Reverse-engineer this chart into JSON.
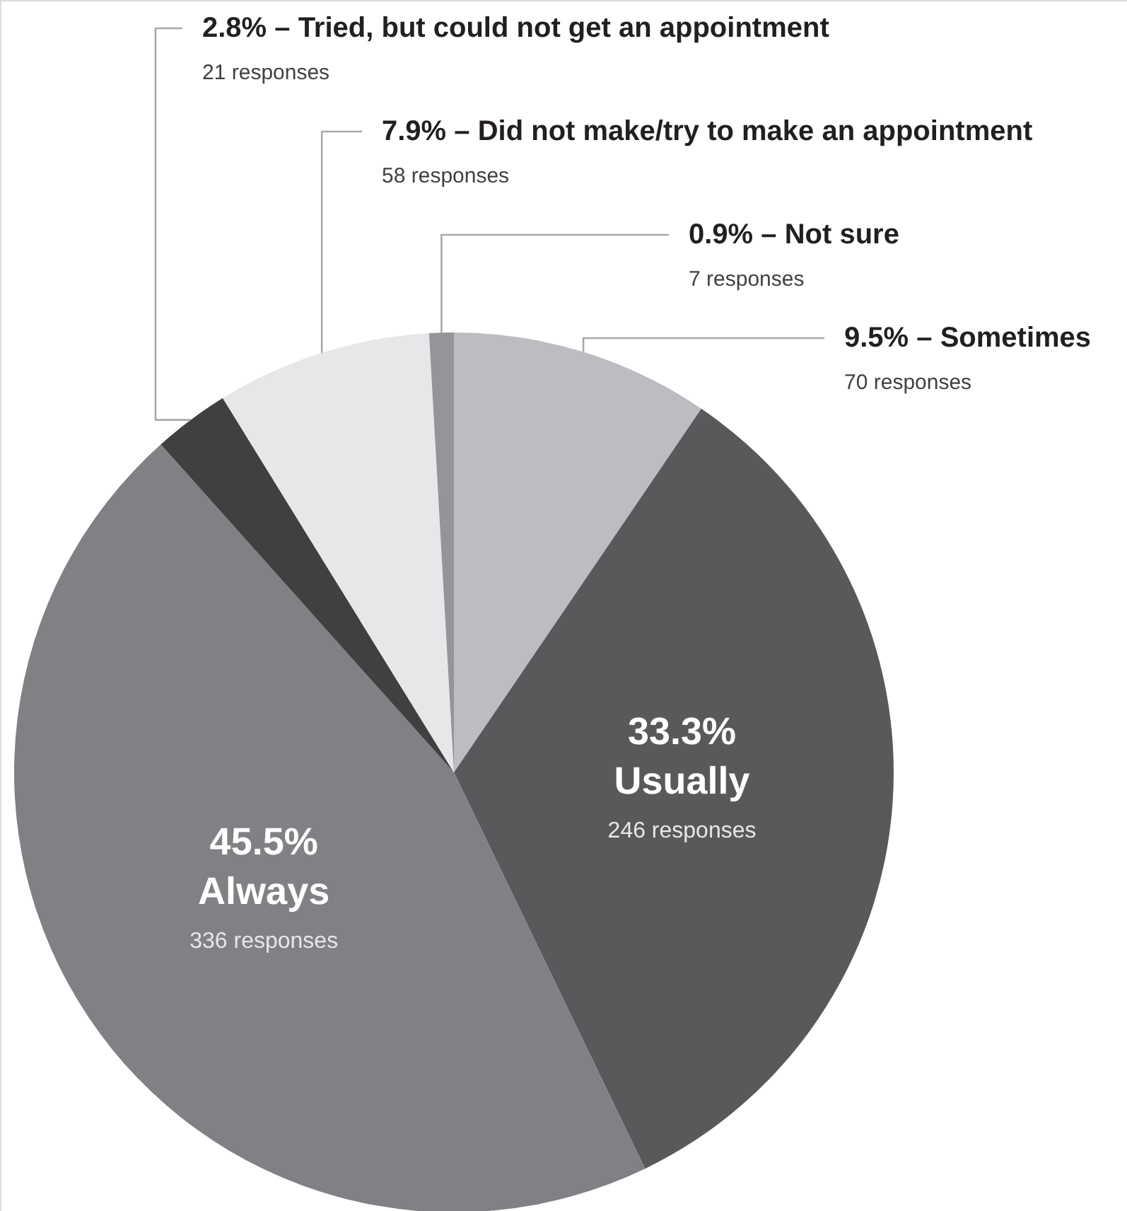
{
  "chart_data": {
    "type": "pie",
    "categories": [
      "Sometimes",
      "Usually",
      "Always",
      "Tried, but could not get an appointment",
      "Did not make/try to make an appointment",
      "Not sure"
    ],
    "values": [
      9.5,
      33.3,
      45.5,
      2.8,
      7.9,
      0.9
    ],
    "value_labels": [
      "9.5%",
      "33.3%",
      "45.5%",
      "2.8%",
      "7.9%",
      "0.9%"
    ],
    "colors": [
      "#bcbdc0",
      "#58595b",
      "#808184",
      "#404041",
      "#e6e7e8",
      "#939598"
    ],
    "annotations": [
      "70 responses",
      "246 responses",
      "336 responses",
      "21 responses",
      "58 responses",
      "7 responses"
    ]
  }
}
